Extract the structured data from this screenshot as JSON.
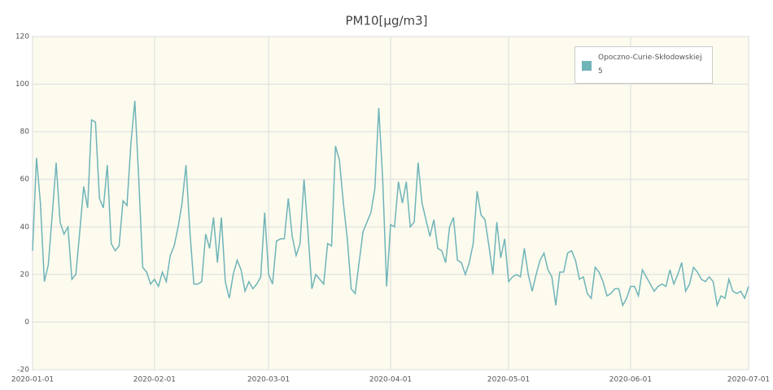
{
  "chart_data": {
    "type": "line",
    "title": "PM10[µg/m3]",
    "x": [
      "2020-01-01",
      "2020-01-02",
      "2020-01-03",
      "2020-01-04",
      "2020-01-05",
      "2020-01-06",
      "2020-01-07",
      "2020-01-08",
      "2020-01-09",
      "2020-01-10",
      "2020-01-11",
      "2020-01-12",
      "2020-01-13",
      "2020-01-14",
      "2020-01-15",
      "2020-01-16",
      "2020-01-17",
      "2020-01-18",
      "2020-01-19",
      "2020-01-20",
      "2020-01-21",
      "2020-01-22",
      "2020-01-23",
      "2020-01-24",
      "2020-01-25",
      "2020-01-26",
      "2020-01-27",
      "2020-01-28",
      "2020-01-29",
      "2020-01-30",
      "2020-01-31",
      "2020-02-01",
      "2020-02-02",
      "2020-02-03",
      "2020-02-04",
      "2020-02-05",
      "2020-02-06",
      "2020-02-07",
      "2020-02-08",
      "2020-02-09",
      "2020-02-10",
      "2020-02-11",
      "2020-02-12",
      "2020-02-13",
      "2020-02-14",
      "2020-02-15",
      "2020-02-16",
      "2020-02-17",
      "2020-02-18",
      "2020-02-19",
      "2020-02-20",
      "2020-02-21",
      "2020-02-22",
      "2020-02-23",
      "2020-02-24",
      "2020-02-25",
      "2020-02-26",
      "2020-02-27",
      "2020-02-28",
      "2020-02-29",
      "2020-03-01",
      "2020-03-02",
      "2020-03-03",
      "2020-03-04",
      "2020-03-05",
      "2020-03-06",
      "2020-03-07",
      "2020-03-08",
      "2020-03-09",
      "2020-03-10",
      "2020-03-11",
      "2020-03-12",
      "2020-03-13",
      "2020-03-14",
      "2020-03-15",
      "2020-03-16",
      "2020-03-17",
      "2020-03-18",
      "2020-03-19",
      "2020-03-20",
      "2020-03-21",
      "2020-03-22",
      "2020-03-23",
      "2020-03-24",
      "2020-03-25",
      "2020-03-26",
      "2020-03-27",
      "2020-03-28",
      "2020-03-29",
      "2020-03-30",
      "2020-03-31",
      "2020-04-01",
      "2020-04-02",
      "2020-04-03",
      "2020-04-04",
      "2020-04-05",
      "2020-04-06",
      "2020-04-07",
      "2020-04-08",
      "2020-04-09",
      "2020-04-10",
      "2020-04-11",
      "2020-04-12",
      "2020-04-13",
      "2020-04-14",
      "2020-04-15",
      "2020-04-16",
      "2020-04-17",
      "2020-04-18",
      "2020-04-19",
      "2020-04-20",
      "2020-04-21",
      "2020-04-22",
      "2020-04-23",
      "2020-04-24",
      "2020-04-25",
      "2020-04-26",
      "2020-04-27",
      "2020-04-28",
      "2020-04-29",
      "2020-04-30",
      "2020-05-01",
      "2020-05-02",
      "2020-05-03",
      "2020-05-04",
      "2020-05-05",
      "2020-05-06",
      "2020-05-07",
      "2020-05-08",
      "2020-05-09",
      "2020-05-10",
      "2020-05-11",
      "2020-05-12",
      "2020-05-13",
      "2020-05-14",
      "2020-05-15",
      "2020-05-16",
      "2020-05-17",
      "2020-05-18",
      "2020-05-19",
      "2020-05-20",
      "2020-05-21",
      "2020-05-22",
      "2020-05-23",
      "2020-05-24",
      "2020-05-25",
      "2020-05-26",
      "2020-05-27",
      "2020-05-28",
      "2020-05-29",
      "2020-05-30",
      "2020-05-31",
      "2020-06-01",
      "2020-06-02",
      "2020-06-03",
      "2020-06-04",
      "2020-06-05",
      "2020-06-06",
      "2020-06-07",
      "2020-06-08",
      "2020-06-09",
      "2020-06-10",
      "2020-06-11",
      "2020-06-12",
      "2020-06-13",
      "2020-06-14",
      "2020-06-15",
      "2020-06-16",
      "2020-06-17",
      "2020-06-18",
      "2020-06-19",
      "2020-06-20",
      "2020-06-21",
      "2020-06-22",
      "2020-06-23",
      "2020-06-24",
      "2020-06-25",
      "2020-06-26",
      "2020-06-27",
      "2020-06-28",
      "2020-06-29",
      "2020-06-30",
      "2020-07-01"
    ],
    "series": [
      {
        "name": "Opoczno-Curie-Skłodowskiej 5",
        "color": "#6fb4b8",
        "values": [
          30,
          69,
          50,
          17,
          24,
          45,
          67,
          42,
          37,
          40,
          18,
          20,
          38,
          57,
          48,
          85,
          84,
          52,
          48,
          66,
          33,
          30,
          32,
          51,
          49,
          75,
          93,
          60,
          23,
          21,
          16,
          18,
          15,
          21,
          17,
          28,
          32,
          40,
          50,
          66,
          38,
          16,
          16,
          17,
          37,
          31,
          44,
          25,
          44,
          17,
          10,
          20,
          26,
          22,
          13,
          17,
          14,
          16,
          19,
          46,
          20,
          16,
          34,
          35,
          35,
          52,
          36,
          28,
          33,
          60,
          38,
          14,
          20,
          18,
          16,
          33,
          32,
          74,
          68,
          50,
          35,
          14,
          12,
          25,
          38,
          42,
          46,
          56,
          90,
          60,
          15,
          41,
          40,
          59,
          50,
          59,
          40,
          42,
          67,
          50,
          43,
          36,
          43,
          31,
          30,
          25,
          40,
          44,
          26,
          25,
          20,
          25,
          33,
          55,
          45,
          43,
          32,
          20,
          42,
          27,
          35,
          17,
          19,
          20,
          19,
          31,
          20,
          13,
          20,
          26,
          29,
          22,
          19,
          7,
          21,
          21,
          29,
          30,
          26,
          18,
          19,
          12,
          10,
          23,
          21,
          17,
          11,
          12,
          14,
          14,
          7,
          10,
          15,
          15,
          11,
          22,
          19,
          16,
          13,
          15,
          16,
          15,
          22,
          16,
          20,
          25,
          13,
          16,
          23,
          21,
          18,
          17,
          19,
          17,
          7,
          11,
          10,
          18,
          13,
          12,
          13,
          10,
          15
        ]
      }
    ],
    "xlim": [
      "2020-01-01",
      "2020-07-01"
    ],
    "xticks": [
      "2020-01-01",
      "2020-02-01",
      "2020-03-01",
      "2020-04-01",
      "2020-05-01",
      "2020-06-01",
      "2020-07-01"
    ],
    "ylim": [
      -20,
      120
    ],
    "yticks": [
      -20,
      0,
      20,
      40,
      60,
      80,
      100,
      120
    ],
    "grid": true,
    "legend": "top-right"
  }
}
